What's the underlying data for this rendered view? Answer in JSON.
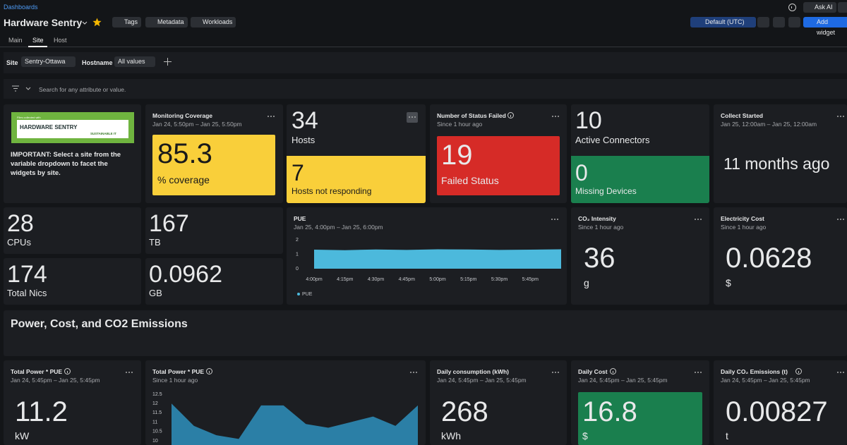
{
  "header": {
    "breadcrumb": "Dashboards",
    "title": "Hardware Sentry",
    "buttons": [
      "Tags",
      "Metadata",
      "Workloads"
    ],
    "ask_ai": "Ask AI",
    "timezone": "Default (UTC)",
    "add_widget": "Add widget"
  },
  "tabs": [
    "Main",
    "Site",
    "Host"
  ],
  "filters": {
    "site_label": "Site",
    "site_value": "Sentry-Ottawa",
    "hostname_label": "Hostname",
    "hostname_value": "All values"
  },
  "search_placeholder": "Search for any attribute or value.",
  "widgets": {
    "logo": {
      "tagline": "Files collected with",
      "brand": "HARDWARE SENTRY",
      "sub": "SUSTAINABLE IT",
      "text": "IMPORTANT: Select a site from the variable dropdown to facet the widgets by site."
    },
    "coverage": {
      "title": "Monitoring Coverage",
      "subtitle": "Jan 24, 5:50pm – Jan 25, 5:50pm",
      "value": 85.3,
      "unit": "% coverage"
    },
    "hosts": {
      "value": 34,
      "label": "Hosts",
      "nr_value": 7,
      "nr_label": "Hosts not responding"
    },
    "status": {
      "title": "Number of Status Failed",
      "subtitle": "Since 1 hour ago",
      "value": 19,
      "label": "Failed Status"
    },
    "connectors": {
      "value": 10,
      "label": "Active Connectors",
      "missing_value": 0,
      "missing_label": "Missing Devices"
    },
    "collect": {
      "title": "Collect Started",
      "subtitle": "Jan 25, 12:00am – Jan 25, 12:00am",
      "value": "11 months ago"
    },
    "cpus": {
      "value": 28,
      "label": "CPUs"
    },
    "tb": {
      "value": 167,
      "label": "TB"
    },
    "nics": {
      "value": 174,
      "label": "Total Nics"
    },
    "gb": {
      "value": 0.0962,
      "label": "GB"
    },
    "co2_intensity": {
      "title": "CO₂ Intensity",
      "subtitle": "Since 1 hour ago",
      "value": 36,
      "unit": "g"
    },
    "electricity": {
      "title": "Electricity Cost",
      "subtitle": "Since 1 hour ago",
      "value": 0.0628,
      "unit": "$"
    },
    "section": {
      "title": "Power, Cost, and CO2 Emissions"
    },
    "total_power": {
      "title": "Total Power * PUE",
      "subtitle": "Jan 24, 5:45pm – Jan 25, 5:45pm",
      "value": 11.2,
      "unit": "kW"
    },
    "daily_consumption": {
      "title": "Daily consumption (kWh)",
      "subtitle": "Jan 24, 5:45pm – Jan 25, 5:45pm",
      "value": 268,
      "unit": "kWh"
    },
    "daily_cost": {
      "title": "Daily Cost",
      "subtitle": "Jan 24, 5:45pm – Jan 25, 5:45pm",
      "value": 16.8,
      "unit": "$"
    },
    "daily_co2": {
      "title": "Daily CO₂ Emissions (t)",
      "subtitle": "Jan 24, 5:45pm – Jan 25, 5:45pm",
      "value": 0.00827,
      "unit": "t"
    }
  },
  "chart_data": [
    {
      "type": "area",
      "title": "PUE",
      "subtitle": "Jan 25, 4:00pm – Jan 25, 6:00pm",
      "categories": [
        "4:00pm",
        "4:15pm",
        "4:30pm",
        "4:45pm",
        "5:00pm",
        "5:15pm",
        "5:30pm",
        "5:45pm",
        null
      ],
      "series": [
        {
          "name": "PUE",
          "color": "#4cb9dc",
          "values": [
            1.32,
            1.28,
            1.33,
            1.3,
            1.34,
            1.33,
            1.3,
            1.32,
            1.34
          ]
        }
      ],
      "ylim": [
        0,
        2
      ],
      "yticks": [
        0,
        1,
        2
      ]
    },
    {
      "type": "area",
      "title": "Total Power * PUE",
      "subtitle": "Since 1 hour ago",
      "series": [
        {
          "color": "#2b7fa6",
          "values": [
            12,
            10.8,
            10.3,
            10.1,
            11.9,
            11.9,
            10.9,
            10.7,
            11,
            11.3,
            10.8,
            11.9
          ]
        }
      ],
      "ylim": [
        10,
        12.5
      ],
      "yticks": [
        10,
        10.5,
        11,
        11.5,
        12,
        12.5
      ]
    }
  ]
}
